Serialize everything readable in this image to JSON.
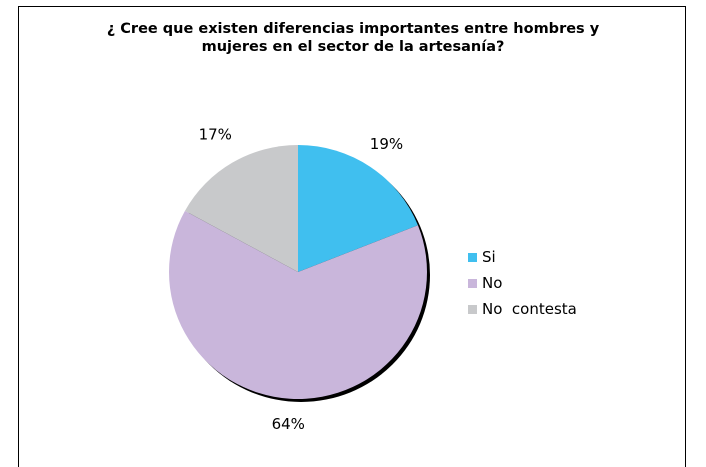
{
  "chart_data": {
    "type": "pie",
    "title": "¿ Cree que existen diferencias importantes entre hombres y\nmujeres en el sector de la artesanía?",
    "categories": [
      "Si",
      "No",
      "No  contesta"
    ],
    "values": [
      19,
      64,
      17
    ],
    "labels": [
      "19%",
      "64%",
      "17%"
    ],
    "colors": [
      "#40BFEF",
      "#C9B6DB",
      "#C8C9CB"
    ],
    "legend_position": "right"
  }
}
